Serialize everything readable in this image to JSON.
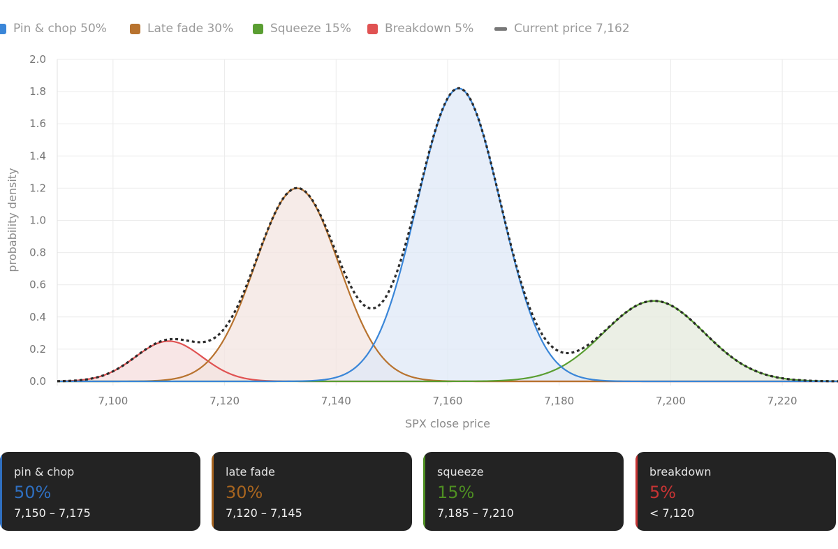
{
  "legend": [
    {
      "label": "Pin & chop 50%",
      "color": "#3a86d8",
      "kind": "box"
    },
    {
      "label": "Late fade 30%",
      "color": "#b8732f",
      "kind": "box"
    },
    {
      "label": "Squeeze 15%",
      "color": "#5a9e32",
      "kind": "box"
    },
    {
      "label": "Breakdown 5%",
      "color": "#e05252",
      "kind": "box"
    },
    {
      "label": "Current price 7,162",
      "color": "#777777",
      "kind": "line"
    }
  ],
  "chart_data": {
    "type": "area",
    "xlabel": "SPX close price",
    "ylabel": "probability density",
    "xlim": [
      7090,
      7230
    ],
    "ylim": [
      0,
      2.0
    ],
    "x_ticks": [
      7100,
      7120,
      7140,
      7160,
      7180,
      7200,
      7220
    ],
    "x_tick_labels": [
      "7,100",
      "7,120",
      "7,140",
      "7,160",
      "7,180",
      "7,200",
      "7,220"
    ],
    "y_ticks": [
      0,
      0.2,
      0.4,
      0.6,
      0.8,
      1.0,
      1.2,
      1.4,
      1.6,
      1.8,
      2.0
    ],
    "y_tick_labels": [
      "0.0",
      "0.2",
      "0.4",
      "0.6",
      "0.8",
      "1.0",
      "1.2",
      "1.4",
      "1.6",
      "1.8",
      "2.0"
    ],
    "grid": true,
    "series": [
      {
        "name": "Pin & chop 50%",
        "color": "#3a86d8",
        "fill": "#dfe8f7",
        "mean": 7162,
        "sd": 7.5,
        "peak": 1.82
      },
      {
        "name": "Late fade 30%",
        "color": "#b8732f",
        "fill": "#f3e4e0",
        "mean": 7133,
        "sd": 7.5,
        "peak": 1.2
      },
      {
        "name": "Squeeze 15%",
        "color": "#5a9e32",
        "fill": "#e4e9dc",
        "mean": 7197,
        "sd": 9.0,
        "peak": 0.5
      },
      {
        "name": "Breakdown 5%",
        "color": "#e05252",
        "fill": "#f5dede",
        "mean": 7110,
        "sd": 6.0,
        "peak": 0.25
      }
    ],
    "total_curve": {
      "name": "Current price 7,162",
      "color": "#2b2b2b",
      "style": "dotted"
    }
  },
  "cards": [
    {
      "title": "pin & chop",
      "pct": "50%",
      "range": "7,150 – 7,175",
      "color": "#2f6fc0"
    },
    {
      "title": "late fade",
      "pct": "30%",
      "range": "7,120 – 7,145",
      "color": "#a8651f"
    },
    {
      "title": "squeeze",
      "pct": "15%",
      "range": "7,185 – 7,210",
      "color": "#4e8f22"
    },
    {
      "title": "breakdown",
      "pct": "5%",
      "range": "< 7,120",
      "color": "#c83434"
    }
  ]
}
